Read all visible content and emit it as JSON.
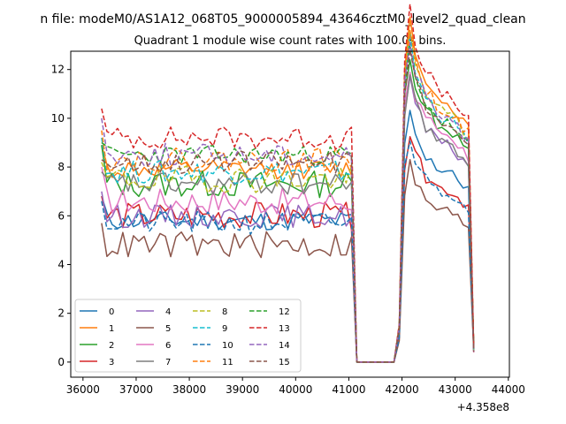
{
  "chart_data": {
    "type": "line",
    "suptitle": "n file: modeM0/AS1A12_068T05_9000005894_43646cztM0_level2_quad_clean",
    "title": "Quadrant 1 module wise count rates with 100.0s bins.",
    "xlabel": "",
    "ylabel": "",
    "offset_label": "+4.358e8",
    "xlim": [
      35770,
      44020
    ],
    "ylim": [
      -0.62,
      12.75
    ],
    "x_ticks": [
      36000,
      37000,
      38000,
      39000,
      40000,
      41000,
      42000,
      43000,
      44000
    ],
    "x_tick_labels": [
      "36000",
      "37000",
      "38000",
      "39000",
      "40000",
      "41000",
      "42000",
      "43000",
      "44000"
    ],
    "y_ticks": [
      0,
      2,
      4,
      6,
      8,
      10,
      12
    ],
    "y_tick_labels": [
      "0",
      "2",
      "4",
      "6",
      "8",
      "10",
      "12"
    ],
    "legend_position": "lower-left",
    "legend_columns": 4,
    "x_start": 36350,
    "x_step": 100,
    "base_profile": {
      "gti1_end_index": 47,
      "gap_end_index": 57,
      "gti2_end_index": 70,
      "gti2_shape": [
        1.25,
        1.45,
        1.3,
        1.25,
        1.18,
        1.17,
        1.12,
        1.1,
        1.1,
        1.08,
        1.05,
        1.02,
        1.0
      ]
    },
    "series": [
      {
        "name": "0",
        "color": "#1f77b4",
        "dash": "solid",
        "level": 5.8,
        "noise": 0.25,
        "seed": 11,
        "level2": 7.5,
        "first": 6.8
      },
      {
        "name": "1",
        "color": "#ff7f0e",
        "dash": "solid",
        "level": 7.9,
        "noise": 0.25,
        "seed": 12,
        "level2": 10.2,
        "first": 8.9
      },
      {
        "name": "2",
        "color": "#2ca02c",
        "dash": "solid",
        "level": 7.3,
        "noise": 0.35,
        "seed": 13,
        "level2": 9.2,
        "first": 8.9
      },
      {
        "name": "3",
        "color": "#d62728",
        "dash": "solid",
        "level": 6.0,
        "noise": 0.35,
        "seed": 14,
        "level2": 6.8,
        "first": 6.8
      },
      {
        "name": "4",
        "color": "#9467bd",
        "dash": "solid",
        "level": 6.0,
        "noise": 0.3,
        "seed": 15,
        "level2": 8.5,
        "first": 7.0
      },
      {
        "name": "5",
        "color": "#8c564b",
        "dash": "solid",
        "level": 4.8,
        "noise": 0.35,
        "seed": 16,
        "level2": 5.9,
        "first": 5.7
      },
      {
        "name": "6",
        "color": "#e377c2",
        "dash": "solid",
        "level": 6.6,
        "noise": 0.35,
        "seed": 17,
        "level2": 8.8,
        "first": 8.0
      },
      {
        "name": "7",
        "color": "#7f7f7f",
        "dash": "solid",
        "level": 7.3,
        "noise": 0.3,
        "seed": 18,
        "level2": 8.6,
        "first": 7.8
      },
      {
        "name": "8",
        "color": "#bcbd22",
        "dash": "dashed",
        "level": 7.5,
        "noise": 0.35,
        "seed": 19,
        "level2": 9.8,
        "first": 8.2
      },
      {
        "name": "9",
        "color": "#17becf",
        "dash": "dashed",
        "level": 7.8,
        "noise": 0.3,
        "seed": 20,
        "level2": 9.6,
        "first": 9.2
      },
      {
        "name": "10",
        "color": "#1f77b4",
        "dash": "dashed",
        "level": 5.7,
        "noise": 0.3,
        "seed": 21,
        "level2": 6.7,
        "first": 6.6
      },
      {
        "name": "11",
        "color": "#ff7f0e",
        "dash": "dashed",
        "level": 8.3,
        "noise": 0.3,
        "seed": 22,
        "level2": 9.9,
        "first": 9.5
      },
      {
        "name": "12",
        "color": "#2ca02c",
        "dash": "dashed",
        "level": 8.5,
        "noise": 0.25,
        "seed": 23,
        "level2": 9.4,
        "first": 9.0
      },
      {
        "name": "13",
        "color": "#d62728",
        "dash": "dashed",
        "level": 9.2,
        "noise": 0.3,
        "seed": 24,
        "level2": 10.5,
        "first": 10.4
      },
      {
        "name": "14",
        "color": "#9467bd",
        "dash": "dashed",
        "level": 8.5,
        "noise": 0.3,
        "seed": 25,
        "level2": 9.6,
        "first": 10.0
      },
      {
        "name": "15",
        "color": "#8c564b",
        "dash": "dashed",
        "level": 8.2,
        "noise": 0.3,
        "seed": 26,
        "level2": 9.3,
        "first": 8.3
      }
    ]
  }
}
